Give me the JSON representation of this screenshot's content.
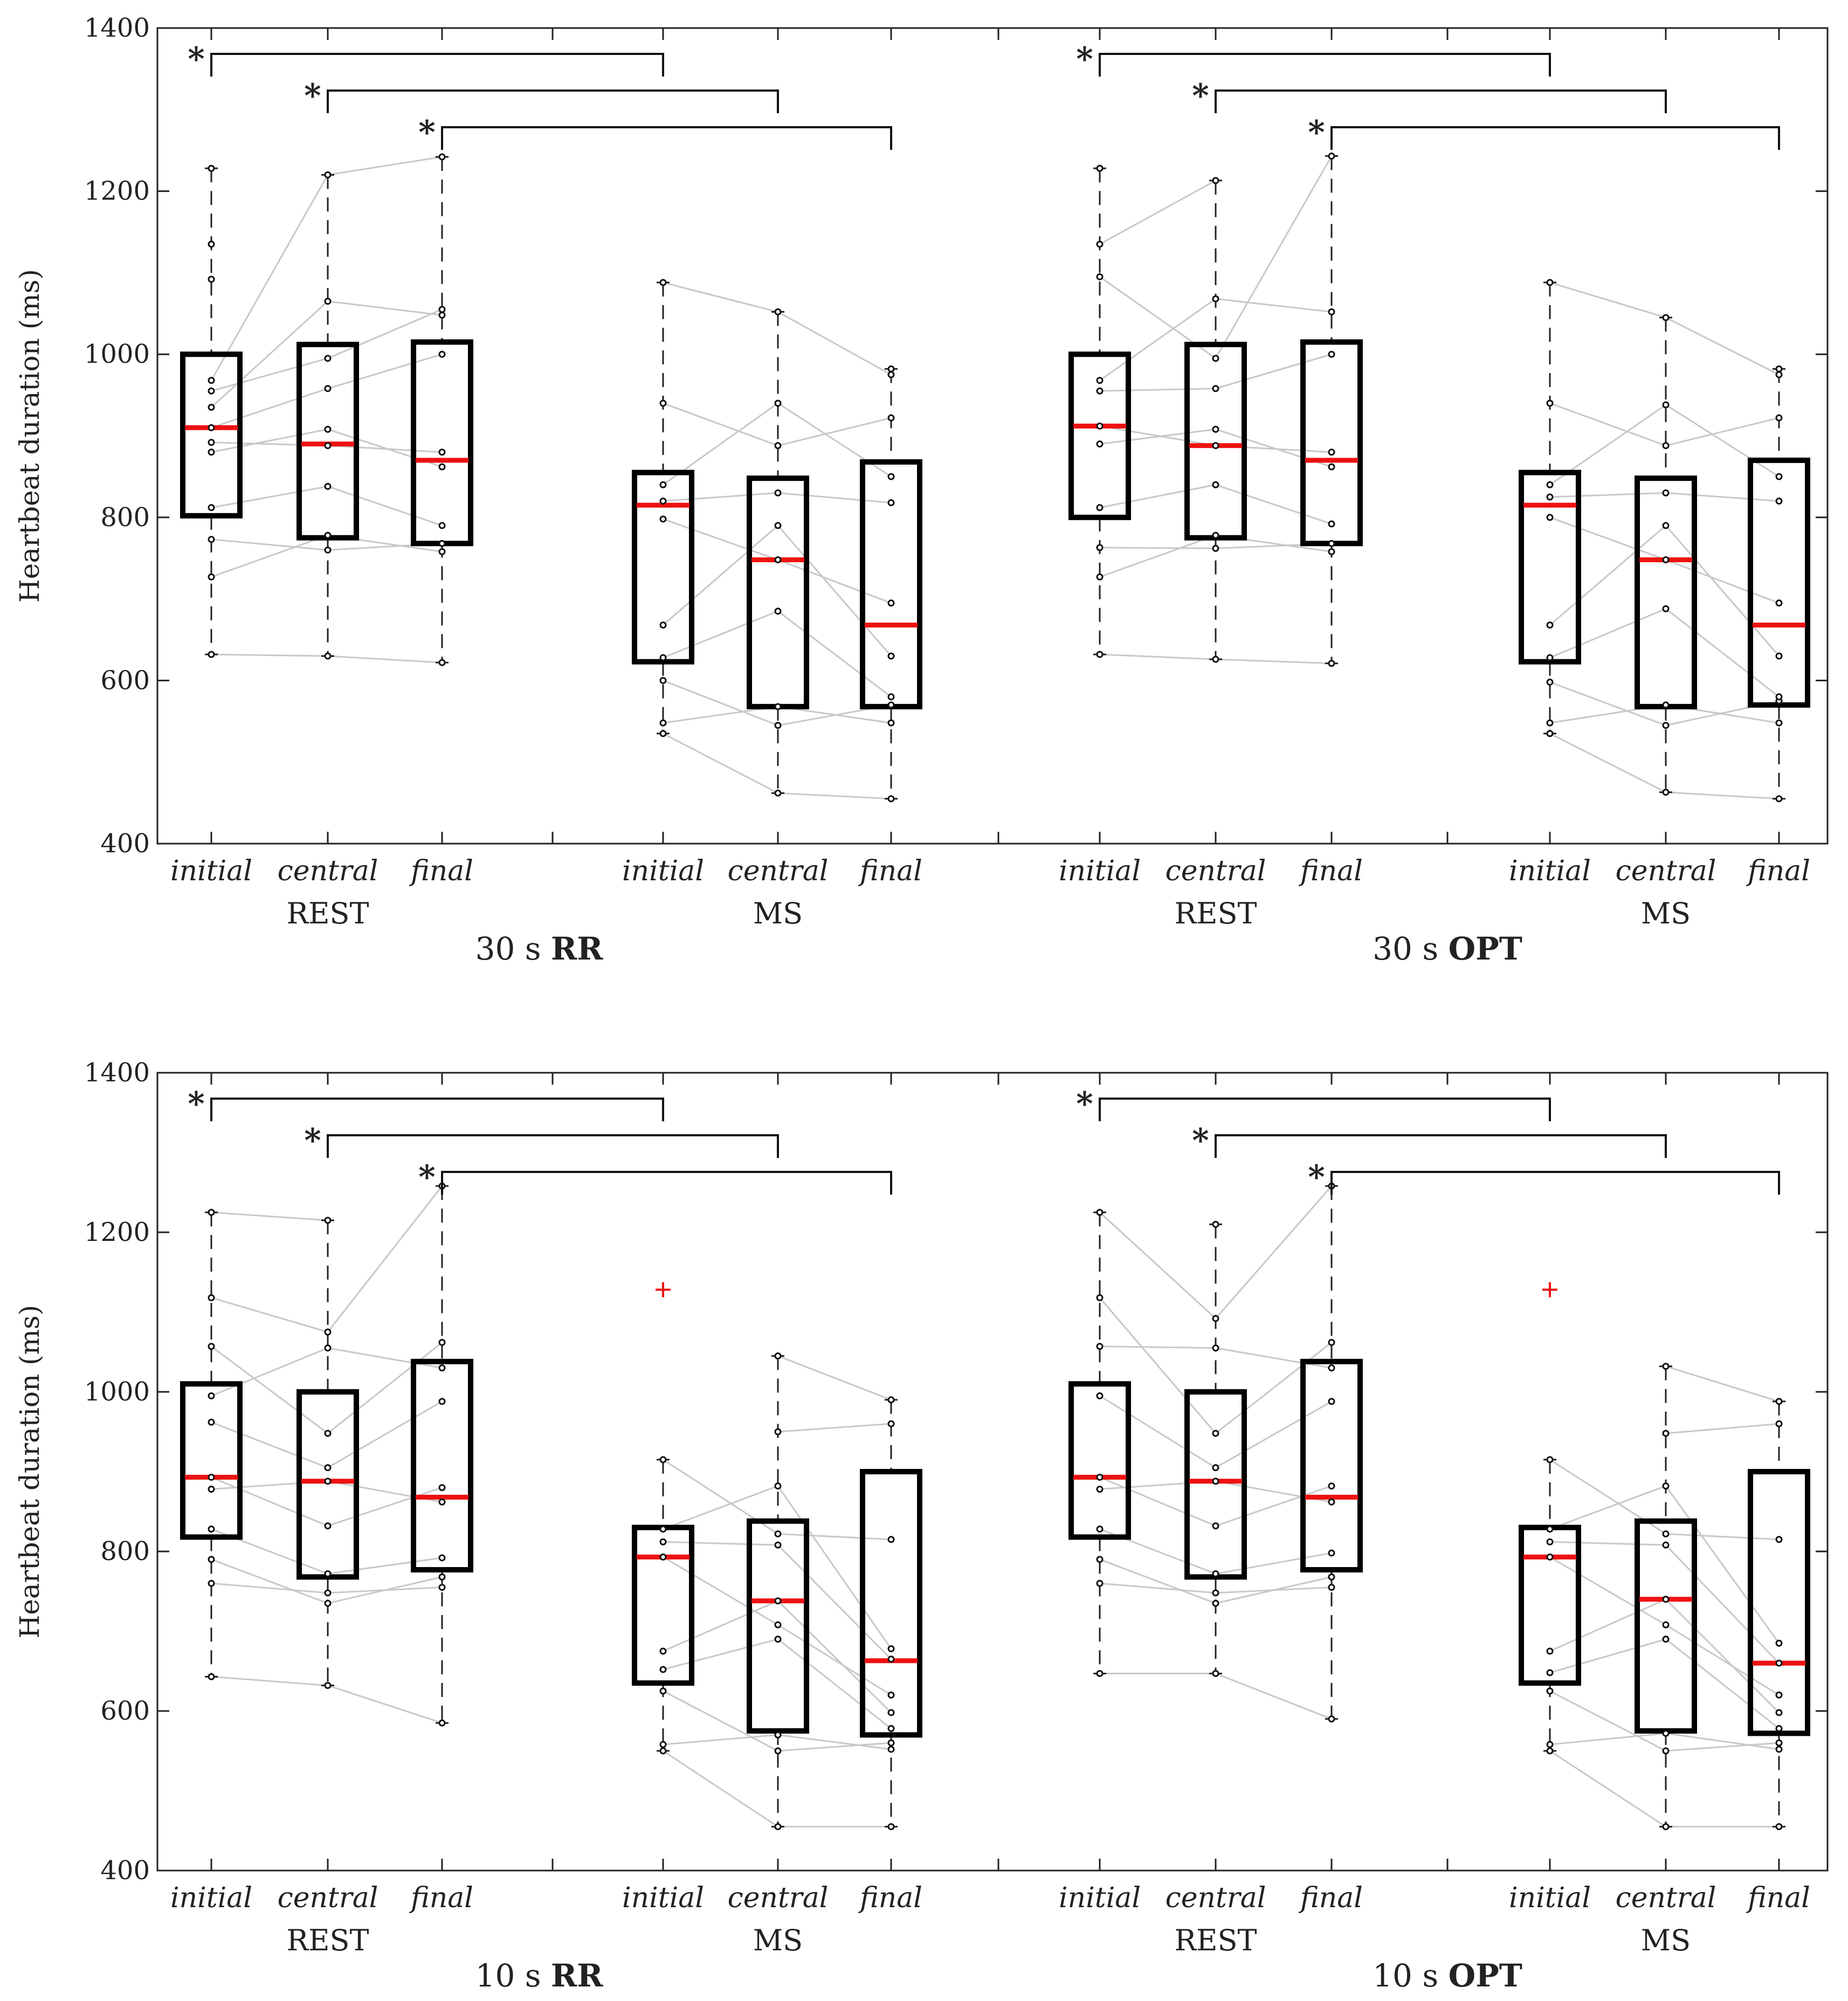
{
  "chart_data": [
    {
      "type": "box",
      "ylabel": "Heartbeat duration (ms)",
      "ylim": [
        400,
        1400
      ],
      "yticks": [
        400,
        600,
        800,
        1000,
        1200,
        1400
      ],
      "titles": [
        {
          "prefix": "30 s ",
          "bold": "RR"
        },
        {
          "prefix": "30 s ",
          "bold": "OPT"
        }
      ],
      "groups": [
        "REST",
        "MS",
        "REST",
        "MS"
      ],
      "conditions": [
        "initial",
        "central",
        "final",
        "initial",
        "central",
        "final",
        "initial",
        "central",
        "final",
        "initial",
        "central",
        "final"
      ],
      "significance": [
        "*",
        "*",
        "*",
        "*",
        "*",
        "*"
      ],
      "boxes": [
        {
          "min": 632,
          "q1": 802,
          "median": 910,
          "q3": 1000,
          "max": 1228,
          "points": [
            632,
            727,
            773,
            812,
            880,
            892,
            910,
            935,
            955,
            968,
            1092,
            1135,
            1228
          ]
        },
        {
          "min": 630,
          "q1": 775,
          "median": 890,
          "q3": 1012,
          "max": 1220,
          "points": [
            630,
            760,
            778,
            838,
            888,
            908,
            958,
            995,
            1065,
            1220
          ]
        },
        {
          "min": 622,
          "q1": 768,
          "median": 870,
          "q3": 1015,
          "max": 1242,
          "points": [
            622,
            758,
            768,
            790,
            862,
            880,
            1000,
            1048,
            1055,
            1242
          ]
        },
        {
          "min": 535,
          "q1": 623,
          "median": 815,
          "q3": 855,
          "max": 1088,
          "points": [
            535,
            548,
            600,
            628,
            668,
            798,
            820,
            840,
            940,
            1088
          ]
        },
        {
          "min": 462,
          "q1": 568,
          "median": 748,
          "q3": 848,
          "max": 1052,
          "points": [
            462,
            545,
            568,
            685,
            748,
            790,
            830,
            888,
            940,
            1052
          ]
        },
        {
          "min": 455,
          "q1": 568,
          "median": 668,
          "q3": 868,
          "max": 982,
          "points": [
            455,
            548,
            570,
            580,
            630,
            695,
            818,
            850,
            922,
            975,
            982
          ]
        },
        {
          "min": 632,
          "q1": 800,
          "median": 912,
          "q3": 1000,
          "max": 1228,
          "points": [
            632,
            727,
            763,
            812,
            890,
            912,
            955,
            968,
            1095,
            1135,
            1228
          ]
        },
        {
          "min": 626,
          "q1": 775,
          "median": 888,
          "q3": 1012,
          "max": 1213,
          "points": [
            626,
            762,
            778,
            840,
            888,
            908,
            958,
            995,
            1068,
            1213
          ]
        },
        {
          "min": 621,
          "q1": 768,
          "median": 870,
          "q3": 1015,
          "max": 1243,
          "points": [
            621,
            758,
            768,
            792,
            862,
            880,
            1000,
            1052,
            1243
          ]
        },
        {
          "min": 535,
          "q1": 623,
          "median": 815,
          "q3": 855,
          "max": 1088,
          "points": [
            535,
            548,
            598,
            628,
            668,
            800,
            825,
            840,
            940,
            1088
          ]
        },
        {
          "min": 463,
          "q1": 568,
          "median": 748,
          "q3": 848,
          "max": 1045,
          "points": [
            463,
            545,
            570,
            688,
            748,
            790,
            830,
            888,
            938,
            1045
          ]
        },
        {
          "min": 455,
          "q1": 570,
          "median": 668,
          "q3": 870,
          "max": 982,
          "points": [
            455,
            548,
            575,
            580,
            630,
            695,
            820,
            850,
            922,
            975,
            982
          ]
        }
      ]
    },
    {
      "type": "box",
      "ylabel": "Heartbeat duration (ms)",
      "ylim": [
        400,
        1400
      ],
      "yticks": [
        400,
        600,
        800,
        1000,
        1200,
        1400
      ],
      "titles": [
        {
          "prefix": "10 s ",
          "bold": "RR"
        },
        {
          "prefix": "10 s ",
          "bold": "OPT"
        }
      ],
      "groups": [
        "REST",
        "MS",
        "REST",
        "MS"
      ],
      "conditions": [
        "initial",
        "central",
        "final",
        "initial",
        "central",
        "final",
        "initial",
        "central",
        "final",
        "initial",
        "central",
        "final"
      ],
      "significance": [
        "*",
        "*",
        "*",
        "*",
        "*",
        "*"
      ],
      "boxes": [
        {
          "min": 643,
          "q1": 818,
          "median": 893,
          "q3": 1010,
          "max": 1225,
          "points": [
            643,
            760,
            790,
            828,
            878,
            893,
            962,
            995,
            1057,
            1118,
            1225
          ]
        },
        {
          "min": 632,
          "q1": 768,
          "median": 888,
          "q3": 1000,
          "max": 1215,
          "points": [
            632,
            735,
            748,
            772,
            832,
            888,
            905,
            948,
            1055,
            1075,
            1215
          ]
        },
        {
          "min": 585,
          "q1": 777,
          "median": 868,
          "q3": 1038,
          "max": 1258,
          "points": [
            585,
            755,
            768,
            792,
            862,
            880,
            988,
            1030,
            1062,
            1258
          ]
        },
        {
          "min": 550,
          "q1": 635,
          "median": 793,
          "q3": 830,
          "max": 915,
          "outlier": 1128,
          "points": [
            550,
            558,
            625,
            652,
            675,
            793,
            812,
            828,
            915
          ]
        },
        {
          "min": 455,
          "q1": 575,
          "median": 738,
          "q3": 838,
          "max": 1045,
          "points": [
            455,
            550,
            570,
            690,
            708,
            738,
            808,
            822,
            882,
            950,
            1045
          ]
        },
        {
          "min": 455,
          "q1": 570,
          "median": 663,
          "q3": 900,
          "max": 990,
          "points": [
            455,
            552,
            560,
            578,
            598,
            620,
            665,
            678,
            815,
            960,
            990
          ]
        },
        {
          "min": 647,
          "q1": 818,
          "median": 893,
          "q3": 1010,
          "max": 1225,
          "points": [
            647,
            760,
            790,
            828,
            878,
            893,
            995,
            1057,
            1118,
            1225
          ]
        },
        {
          "min": 647,
          "q1": 768,
          "median": 888,
          "q3": 1000,
          "max": 1210,
          "points": [
            647,
            735,
            748,
            772,
            832,
            888,
            905,
            948,
            1055,
            1092,
            1210
          ]
        },
        {
          "min": 590,
          "q1": 777,
          "median": 868,
          "q3": 1038,
          "max": 1258,
          "points": [
            590,
            755,
            768,
            798,
            862,
            882,
            988,
            1030,
            1062,
            1258
          ]
        },
        {
          "min": 550,
          "q1": 635,
          "median": 793,
          "q3": 830,
          "max": 915,
          "outlier": 1128,
          "points": [
            550,
            558,
            625,
            648,
            675,
            793,
            812,
            828,
            915
          ]
        },
        {
          "min": 455,
          "q1": 575,
          "median": 740,
          "q3": 838,
          "max": 1032,
          "points": [
            455,
            550,
            572,
            690,
            708,
            740,
            808,
            822,
            882,
            948,
            1032
          ]
        },
        {
          "min": 455,
          "q1": 572,
          "median": 660,
          "q3": 900,
          "max": 988,
          "points": [
            455,
            552,
            560,
            578,
            598,
            620,
            660,
            685,
            815,
            960,
            988
          ]
        }
      ]
    }
  ]
}
